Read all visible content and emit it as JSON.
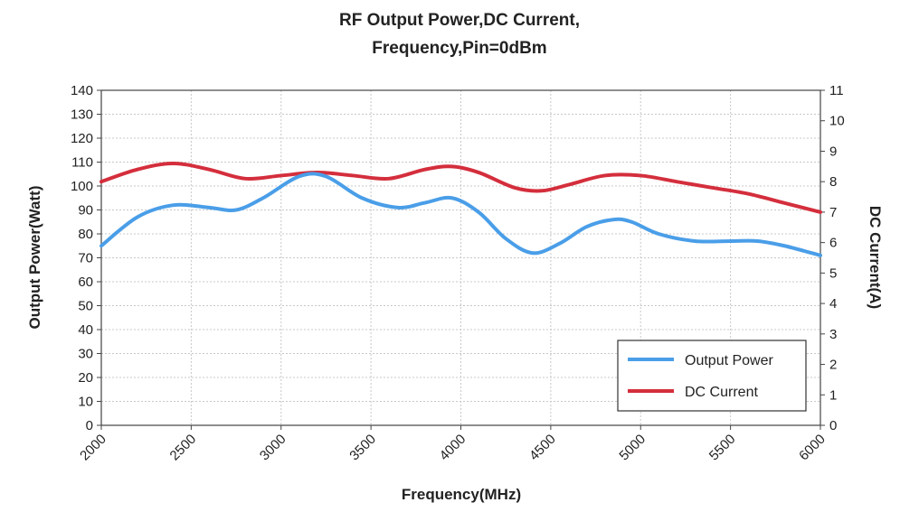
{
  "chart_data": {
    "type": "line",
    "title_lines": [
      "RF Output Power,DC Current,",
      "Frequency,Pin=0dBm"
    ],
    "xlabel": "Frequency(MHz)",
    "ylabel_left": "Output Power(Watt)",
    "ylabel_right": "DC Current(A)",
    "xlim": [
      2000,
      6000
    ],
    "ylim_left": [
      0,
      140
    ],
    "ylim_right": [
      0,
      11
    ],
    "x_ticks": [
      2000,
      2500,
      3000,
      3500,
      4000,
      4500,
      5000,
      5500,
      6000
    ],
    "y_left_ticks": [
      0,
      10,
      20,
      30,
      40,
      50,
      60,
      70,
      80,
      90,
      100,
      110,
      120,
      130,
      140
    ],
    "y_right_ticks": [
      0,
      1,
      2,
      3,
      4,
      5,
      6,
      7,
      8,
      9,
      10,
      11
    ],
    "grid": true,
    "legend_position": "bottom-right",
    "series": [
      {
        "name": "Output Power",
        "axis": "left",
        "color": "#4a9ee8",
        "x": [
          2000,
          2200,
          2400,
          2600,
          2750,
          2900,
          3100,
          3250,
          3450,
          3650,
          3800,
          3950,
          4100,
          4250,
          4400,
          4550,
          4700,
          4850,
          4950,
          5100,
          5300,
          5500,
          5650,
          5800,
          6000
        ],
        "y": [
          75,
          87,
          92,
          91,
          90,
          95,
          104,
          104,
          95,
          91,
          93,
          95,
          89,
          78,
          72,
          76,
          83,
          86,
          85,
          80,
          77,
          77,
          77,
          75,
          71
        ]
      },
      {
        "name": "DC Current",
        "axis": "right",
        "color": "#d42e3c",
        "x": [
          2000,
          2200,
          2400,
          2600,
          2800,
          3000,
          3200,
          3400,
          3600,
          3800,
          3950,
          4100,
          4300,
          4450,
          4600,
          4800,
          5000,
          5200,
          5400,
          5600,
          5800,
          6000
        ],
        "y": [
          8.0,
          8.4,
          8.6,
          8.4,
          8.1,
          8.2,
          8.3,
          8.2,
          8.1,
          8.4,
          8.5,
          8.3,
          7.8,
          7.7,
          7.9,
          8.2,
          8.2,
          8.0,
          7.8,
          7.6,
          7.3,
          7.0
        ]
      }
    ]
  }
}
